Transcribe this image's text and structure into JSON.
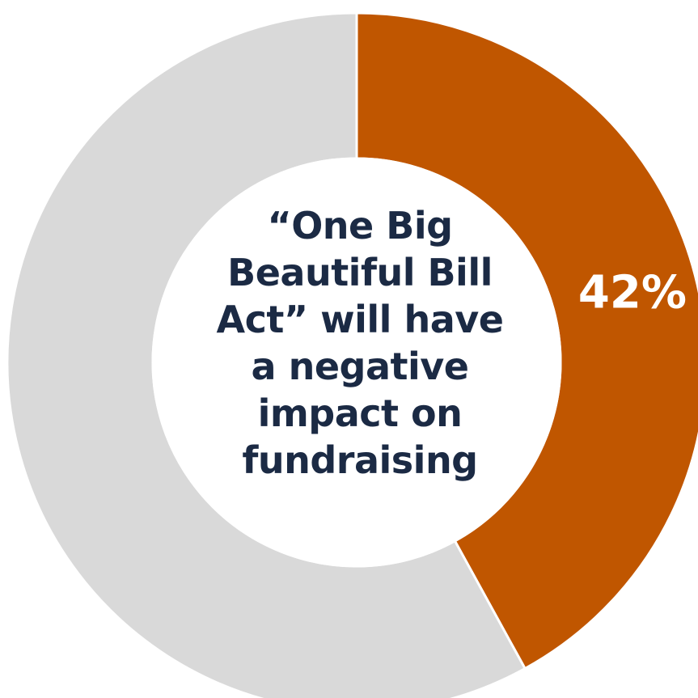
{
  "chart_data": {
    "type": "pie",
    "variant": "donut",
    "center_label_lines": [
      "“One Big",
      "Beautiful Bill",
      "Act” will have",
      "a negative",
      "impact on",
      "fundraising"
    ],
    "slices": [
      {
        "value": 42,
        "label": "42%",
        "color": "#c05600"
      },
      {
        "value": 58,
        "label": "",
        "color": "#d9d9d9"
      }
    ],
    "label_color": "#ffffff",
    "center_text_color": "#1b2a44"
  }
}
